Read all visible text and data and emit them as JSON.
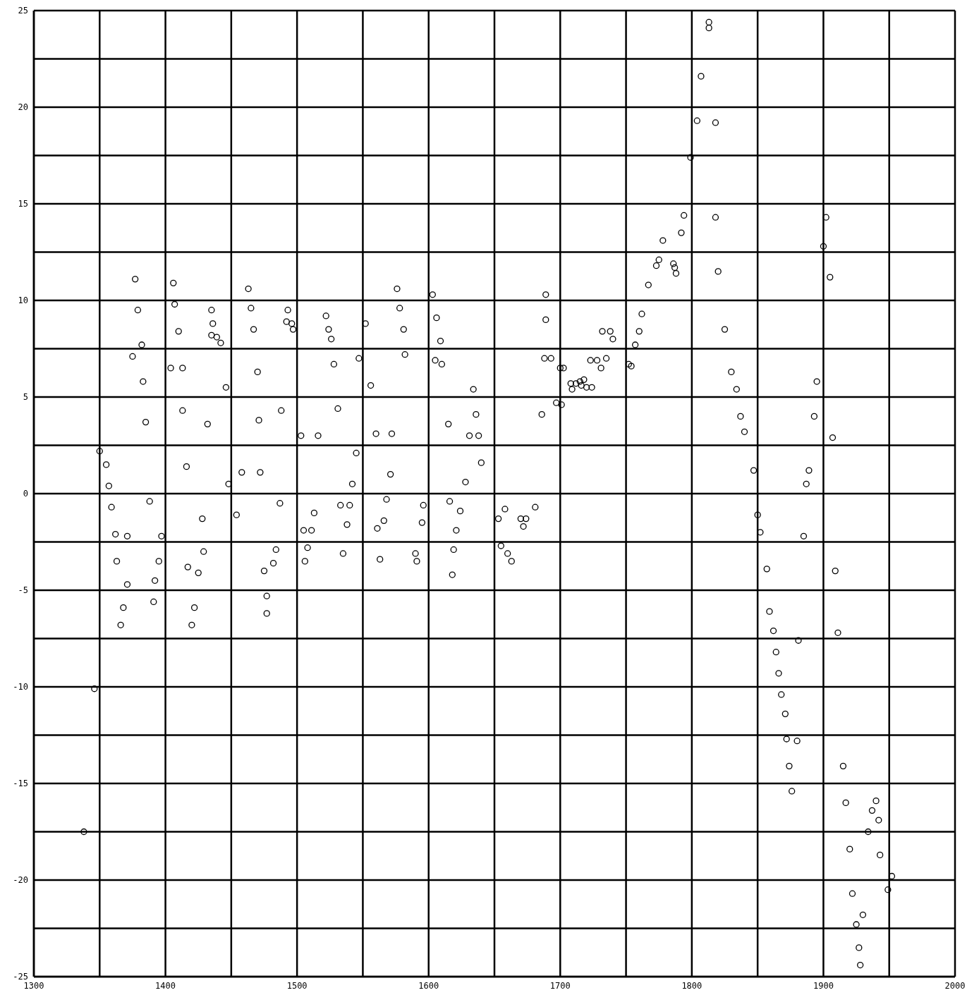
{
  "chart_data": {
    "type": "scatter",
    "xlim": [
      1300,
      2000
    ],
    "ylim": [
      -25,
      25
    ],
    "xticks": [
      1300,
      {
        "value": 1350,
        "label": null
      },
      1400,
      {
        "value": 1450,
        "label": null
      },
      1500,
      {
        "value": 1550,
        "label": null
      },
      1600,
      {
        "value": 1650,
        "label": null
      },
      1700,
      {
        "value": 1750,
        "label": null
      },
      1800,
      {
        "value": 1850,
        "label": null
      },
      1900,
      {
        "value": 1950,
        "label": null
      },
      2000
    ],
    "yticks": [
      -25,
      {
        "value": -22.5,
        "label": null
      },
      -20,
      {
        "value": -17.5,
        "label": null
      },
      -15,
      {
        "value": -12.5,
        "label": null
      },
      -10,
      {
        "value": -7.5,
        "label": null
      },
      -5,
      {
        "value": -2.5,
        "label": null
      },
      0,
      {
        "value": 2.5,
        "label": null
      },
      5,
      {
        "value": 7.5,
        "label": null
      },
      10,
      {
        "value": 12.5,
        "label": null
      },
      15,
      {
        "value": 17.5,
        "label": null
      },
      20,
      {
        "value": 22.5,
        "label": null
      },
      25
    ],
    "grid": true,
    "marker": "circle",
    "series": [
      {
        "color": "#000000",
        "x": [
          1377,
          1379,
          1382,
          1375,
          1383,
          1385,
          1350,
          1355,
          1357,
          1359,
          1362,
          1371,
          1363,
          1371,
          1368,
          1366,
          1388,
          1397,
          1395,
          1392,
          1391,
          1346,
          1338,
          1406,
          1407,
          1410,
          1404,
          1413,
          1413,
          1432,
          1416,
          1428,
          1429,
          1417,
          1425,
          1422,
          1420,
          1435,
          1436,
          1435,
          1439,
          1442,
          1446,
          1463,
          1465,
          1467,
          1470,
          1458,
          1472,
          1471,
          1448,
          1454,
          1487,
          1475,
          1482,
          1484,
          1477,
          1477,
          1488,
          1493,
          1492,
          1496,
          1497,
          1522,
          1524,
          1526,
          1528,
          1547,
          1531,
          1503,
          1516,
          1545,
          1542,
          1513,
          1533,
          1540,
          1538,
          1505,
          1511,
          1506,
          1508,
          1535,
          1576,
          1578,
          1581,
          1552,
          1582,
          1556,
          1560,
          1572,
          1571,
          1568,
          1566,
          1561,
          1596,
          1595,
          1563,
          1590,
          1591,
          1606,
          1609,
          1603,
          1610,
          1605,
          1634,
          1636,
          1615,
          1631,
          1638,
          1640,
          1628,
          1616,
          1624,
          1621,
          1619,
          1618,
          1689,
          1689,
          1688,
          1693,
          1686,
          1653,
          1658,
          1670,
          1674,
          1681,
          1672,
          1655,
          1660,
          1663,
          1700,
          1702.5,
          1708,
          1712,
          1715,
          1718,
          1709,
          1716,
          1720,
          1724,
          1697,
          1701,
          1723,
          1728,
          1735,
          1731,
          1732,
          1738,
          1740,
          1754,
          1752,
          1757,
          1760,
          1762,
          1767,
          1773,
          1775,
          1778,
          1786,
          1787,
          1788,
          1792,
          1794,
          1813,
          1813,
          1807,
          1804,
          1818,
          1799,
          1818,
          1820,
          1825,
          1830,
          1834,
          1837,
          1840,
          1847,
          1895,
          1893,
          1889,
          1887,
          1902,
          1900,
          1905,
          1907,
          1850,
          1852,
          1885,
          1857,
          1909,
          1859,
          1862,
          1881,
          1911,
          1864,
          1866,
          1868,
          1871,
          1872,
          1880,
          1874,
          1876,
          1915,
          1917,
          1940,
          1937,
          1942,
          1934,
          1920,
          1943,
          1952,
          1949,
          1922,
          1930,
          1925,
          1927,
          1928
        ],
        "values": [
          11.1,
          9.5,
          7.7,
          7.1,
          5.8,
          3.7,
          2.2,
          1.5,
          0.4,
          -0.7,
          -2.1,
          -2.2,
          -3.5,
          -4.7,
          -5.9,
          -6.8,
          -0.4,
          -2.2,
          -3.5,
          -4.5,
          -5.6,
          -10.1,
          -17.5,
          10.9,
          9.8,
          8.4,
          6.5,
          6.5,
          4.3,
          3.6,
          1.4,
          -1.3,
          -3.0,
          -3.8,
          -4.1,
          -5.9,
          -6.8,
          9.5,
          8.8,
          8.2,
          8.1,
          7.8,
          5.5,
          10.6,
          9.6,
          8.5,
          6.3,
          1.1,
          1.1,
          3.8,
          0.5,
          -1.1,
          -0.5,
          -4.0,
          -3.6,
          -2.9,
          -5.3,
          -6.2,
          4.3,
          9.5,
          8.9,
          8.8,
          8.5,
          9.2,
          8.5,
          8.0,
          6.7,
          7.0,
          4.4,
          3.0,
          3.0,
          2.1,
          0.5,
          -1.0,
          -0.6,
          -0.6,
          -1.6,
          -1.9,
          -1.9,
          -3.5,
          -2.8,
          -3.1,
          10.6,
          9.6,
          8.5,
          8.8,
          7.2,
          5.6,
          3.1,
          3.1,
          1.0,
          -0.3,
          -1.4,
          -1.8,
          -0.6,
          -1.5,
          -3.4,
          -3.1,
          -3.5,
          9.1,
          7.9,
          10.3,
          6.7,
          6.9,
          5.4,
          4.1,
          3.6,
          3.0,
          3.0,
          1.6,
          0.6,
          -0.4,
          -0.9,
          -1.9,
          -2.9,
          -4.2,
          10.3,
          9.0,
          7.0,
          7.0,
          4.1,
          -1.3,
          -0.8,
          -1.3,
          -1.3,
          -0.7,
          -1.7,
          -2.7,
          -3.1,
          -3.5,
          6.5,
          6.5,
          5.7,
          5.7,
          5.8,
          5.9,
          5.4,
          5.6,
          5.5,
          5.5,
          4.7,
          4.6,
          6.9,
          6.9,
          7.0,
          6.5,
          8.4,
          8.4,
          8.0,
          6.6,
          6.7,
          7.7,
          8.4,
          9.3,
          10.8,
          11.8,
          12.1,
          13.1,
          11.9,
          11.7,
          11.4,
          13.5,
          14.4,
          24.1,
          24.4,
          21.6,
          19.3,
          19.2,
          17.4,
          14.3,
          11.5,
          8.5,
          6.3,
          5.4,
          4.0,
          3.2,
          1.2,
          5.8,
          4.0,
          1.2,
          0.5,
          14.3,
          12.8,
          11.2,
          2.9,
          -1.1,
          -2.0,
          -2.2,
          -3.9,
          -4.0,
          -6.1,
          -7.1,
          -7.6,
          -7.2,
          -8.2,
          -9.3,
          -10.4,
          -11.4,
          -12.7,
          -12.8,
          -14.1,
          -15.4,
          -14.1,
          -16.0,
          -15.9,
          -16.4,
          -16.9,
          -17.5,
          -18.4,
          -18.7,
          -19.8,
          -20.5,
          -20.7,
          -21.8,
          -22.3,
          -23.5,
          -24.4
        ]
      }
    ]
  }
}
